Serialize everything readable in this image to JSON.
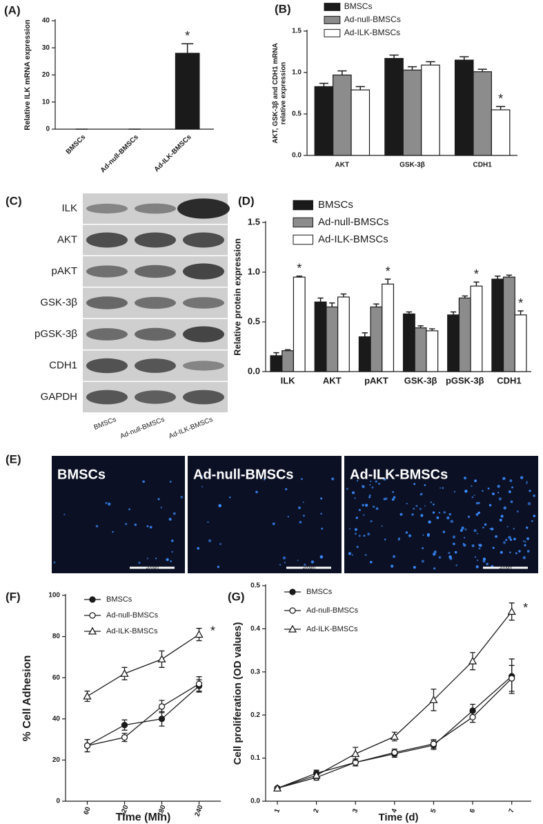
{
  "chart_data": [
    {
      "type": "bar",
      "label": "(A)",
      "ylabel": "Relative ILK mRNA expression",
      "categories": [
        "BMSCs",
        "Ad-null-BMSCs",
        "Ad-ILK-BMSCs"
      ],
      "values": [
        0,
        0,
        28
      ],
      "errors": [
        0,
        0,
        3.5
      ],
      "color": "#1a1a1a",
      "ylim": [
        0,
        40
      ],
      "yticks": [
        0,
        10,
        20,
        30,
        40
      ],
      "annotations": [
        {
          "text": "*",
          "category": 2
        }
      ]
    },
    {
      "type": "bar",
      "label": "(B)",
      "ylabel": "AKT, GSK-3β  and CDH1 mRNA relative expression",
      "categories": [
        "AKT",
        "GSK-3β",
        "CDH1"
      ],
      "series": [
        {
          "name": "BMSCs",
          "color": "#1a1a1a",
          "values": [
            0.83,
            1.17,
            1.15
          ],
          "errors": [
            0.04,
            0.04,
            0.04
          ]
        },
        {
          "name": "Ad-null-BMSCs",
          "color": "#8c8c8c",
          "values": [
            0.97,
            1.03,
            1.01
          ],
          "errors": [
            0.05,
            0.04,
            0.03
          ]
        },
        {
          "name": "Ad-ILK-BMSCs",
          "color": "#ffffff",
          "values": [
            0.79,
            1.09,
            0.55
          ],
          "errors": [
            0.04,
            0.04,
            0.04
          ]
        }
      ],
      "ylim": [
        0,
        1.5
      ],
      "yticks": [
        {
          "value": 0,
          "label": "0.0"
        },
        0.5,
        {
          "value": 1,
          "label": "1.0"
        },
        1.5
      ],
      "annotations": [
        {
          "text": "*",
          "series": 2,
          "category": 2
        }
      ]
    },
    {
      "type": "bar",
      "label": "(D)",
      "ylabel": "Relative protein expression",
      "categories": [
        "ILK",
        "AKT",
        "pAKT",
        "GSK-3β",
        "pGSK-3β",
        "CDH1"
      ],
      "series": [
        {
          "name": "BMSCs",
          "color": "#1a1a1a",
          "values": [
            0.16,
            0.7,
            0.35,
            0.58,
            0.57,
            0.93
          ],
          "errors": [
            0.03,
            0.04,
            0.04,
            0.02,
            0.03,
            0.03
          ]
        },
        {
          "name": "Ad-null-BMSCs",
          "color": "#8c8c8c",
          "values": [
            0.21,
            0.65,
            0.65,
            0.44,
            0.74,
            0.95
          ],
          "errors": [
            0.01,
            0.04,
            0.03,
            0.02,
            0.02,
            0.02
          ]
        },
        {
          "name": "Ad-ILK-BMSCs",
          "color": "#ffffff",
          "values": [
            0.95,
            0.75,
            0.88,
            0.41,
            0.86,
            0.57
          ],
          "errors": [
            0.01,
            0.03,
            0.05,
            0.02,
            0.04,
            0.04
          ]
        }
      ],
      "ylim": [
        0,
        1.5
      ],
      "yticks": [
        {
          "value": 0,
          "label": "0.0"
        },
        0.5,
        {
          "value": 1,
          "label": "1.0"
        },
        1.5
      ],
      "annotations": [
        {
          "text": "*",
          "series": 2,
          "category": 0
        },
        {
          "text": "*",
          "series": 2,
          "category": 2
        },
        {
          "text": "*",
          "series": 2,
          "category": 4
        },
        {
          "text": "*",
          "series": 2,
          "category": 5
        }
      ]
    },
    {
      "type": "line",
      "label": "(F)",
      "xlabel": "Time (Min)",
      "ylabel": "% Cell Adhesion",
      "x": [
        60,
        120,
        180,
        240
      ],
      "xlim": [
        25,
        275
      ],
      "xticks": [
        60,
        120,
        180,
        240
      ],
      "series": [
        {
          "name": "BMSCs",
          "color": "#1a1a1a",
          "marker": "filled-circle",
          "values": [
            27,
            37,
            40,
            56
          ],
          "errors": [
            3,
            2.5,
            3.5,
            3
          ]
        },
        {
          "name": "Ad-null-BMSCs",
          "color": "#1a1a1a",
          "marker": "open-circle",
          "values": [
            27,
            31,
            46,
            57
          ],
          "errors": [
            3,
            2,
            3,
            3.5
          ]
        },
        {
          "name": "Ad-ILK-BMSCs",
          "color": "#1a1a1a",
          "marker": "open-triangle",
          "values": [
            51,
            62,
            69,
            81
          ],
          "errors": [
            2.5,
            3,
            4,
            3
          ]
        }
      ],
      "ylim": [
        0,
        100
      ],
      "yticks": [
        0,
        20,
        40,
        60,
        80,
        100
      ],
      "annotations": [
        {
          "text": "*",
          "series": 2
        }
      ]
    },
    {
      "type": "line",
      "label": "(G)",
      "xlabel": "Time (d)",
      "ylabel": "Cell proliferation (OD values)",
      "x": [
        1,
        2,
        3,
        4,
        5,
        6,
        7
      ],
      "xlim": [
        0.7,
        7.5
      ],
      "xticks": [
        1,
        2,
        3,
        4,
        5,
        6,
        7
      ],
      "series": [
        {
          "name": "BMSCs",
          "color": "#1a1a1a",
          "marker": "filled-circle",
          "values": [
            0.03,
            0.065,
            0.09,
            0.11,
            0.13,
            0.21,
            0.29
          ],
          "errors": [
            0.003,
            0.007,
            0.008,
            0.008,
            0.01,
            0.015,
            0.04
          ]
        },
        {
          "name": "Ad-null-BMSCs",
          "color": "#1a1a1a",
          "marker": "open-circle",
          "values": [
            0.03,
            0.055,
            0.09,
            0.113,
            0.133,
            0.195,
            0.285
          ],
          "errors": [
            0.003,
            0.006,
            0.008,
            0.008,
            0.01,
            0.012,
            0.03
          ]
        },
        {
          "name": "Ad-ILK-BMSCs",
          "color": "#1a1a1a",
          "marker": "open-triangle",
          "values": [
            0.03,
            0.06,
            0.11,
            0.15,
            0.235,
            0.325,
            0.44
          ],
          "errors": [
            0.003,
            0.007,
            0.015,
            0.01,
            0.025,
            0.02,
            0.02
          ]
        }
      ],
      "ylim": [
        0,
        0.5
      ],
      "yticks": [
        {
          "value": 0,
          "label": "0.0"
        },
        0.1,
        0.2,
        0.3,
        0.4,
        0.5
      ],
      "annotations": [
        {
          "text": "*",
          "series": 2
        }
      ]
    }
  ],
  "blot": {
    "label": "(C)",
    "rows": [
      "ILK",
      "AKT",
      "pAKT",
      "GSK-3β",
      "pGSK-3β",
      "CDH1",
      "GAPDH"
    ],
    "lanes": [
      "BMSCs",
      "Ad-null-BMSCs",
      "Ad-ILK-BMSCs"
    ]
  },
  "micrographs": {
    "label": "(E)",
    "panels": [
      "BMSCs",
      "Ad-null-BMSCs",
      "Ad-ILK-BMSCs"
    ],
    "scale": "200um"
  }
}
